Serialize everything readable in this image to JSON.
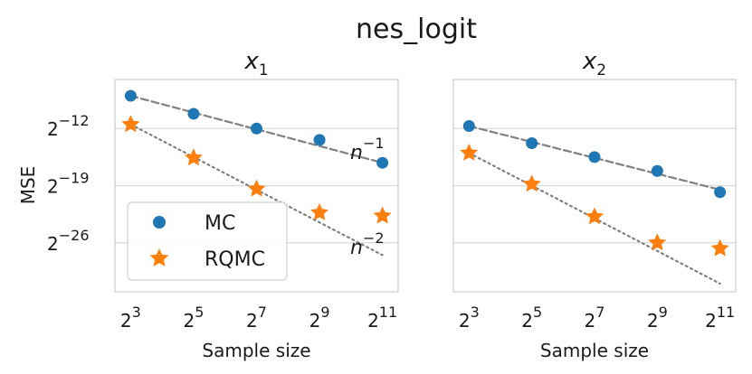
{
  "chart_data": {
    "type": "scatter",
    "title": "nes_logit",
    "ylabel": "MSE",
    "xlabel": "Sample size",
    "x_log2": [
      3,
      5,
      7,
      9,
      11
    ],
    "x_tick_labels": [
      {
        "base": "2",
        "exp": "3"
      },
      {
        "base": "2",
        "exp": "5"
      },
      {
        "base": "2",
        "exp": "7"
      },
      {
        "base": "2",
        "exp": "9"
      },
      {
        "base": "2",
        "exp": "11"
      }
    ],
    "y_ticks_log2": [
      -12,
      -19,
      -26
    ],
    "y_tick_labels": [
      {
        "base": "2",
        "exp": "−12"
      },
      {
        "base": "2",
        "exp": "−19"
      },
      {
        "base": "2",
        "exp": "−26"
      }
    ],
    "xlim_log2": [
      2.5,
      11.5
    ],
    "ylim_log2": [
      -32,
      -6
    ],
    "legend": {
      "position": "lower-left",
      "entries": [
        {
          "label": "MC",
          "marker": "circle",
          "color": "#1f77b4"
        },
        {
          "label": "RQMC",
          "marker": "star",
          "color": "#ff7f0e"
        }
      ]
    },
    "reference_lines": {
      "mc": {
        "label_base": "n",
        "label_exp": "−1",
        "style": "dashed",
        "color": "#808080"
      },
      "rqmc": {
        "label_base": "n",
        "label_exp": "−2",
        "style": "dotted",
        "color": "#808080"
      }
    },
    "panels": [
      {
        "title_var": "x",
        "title_sub": "1",
        "series": [
          {
            "name": "MC",
            "values": [
              -8.0,
              -10.2,
              -12.0,
              -13.4,
              -16.2
            ]
          },
          {
            "name": "RQMC",
            "values": [
              -11.5,
              -15.6,
              -19.4,
              -22.3,
              -22.7
            ]
          }
        ],
        "mc_line": [
          [
            3,
            -8.0
          ],
          [
            11,
            -16.2
          ]
        ],
        "rqmc_line": [
          [
            3,
            -11.5
          ],
          [
            11,
            -27.5
          ]
        ],
        "show_ref_labels": true,
        "show_legend": true,
        "show_y_ticks": true
      },
      {
        "title_var": "x",
        "title_sub": "2",
        "series": [
          {
            "name": "MC",
            "values": [
              -11.7,
              -13.8,
              -15.5,
              -17.2,
              -19.8
            ]
          },
          {
            "name": "RQMC",
            "values": [
              -15.0,
              -18.8,
              -22.8,
              -26.0,
              -26.7
            ]
          }
        ],
        "mc_line": [
          [
            3,
            -11.7
          ],
          [
            11,
            -19.5
          ]
        ],
        "rqmc_line": [
          [
            3,
            -15.0
          ],
          [
            11,
            -31.0
          ]
        ],
        "show_ref_labels": false,
        "show_legend": false,
        "show_y_ticks": false
      }
    ]
  }
}
